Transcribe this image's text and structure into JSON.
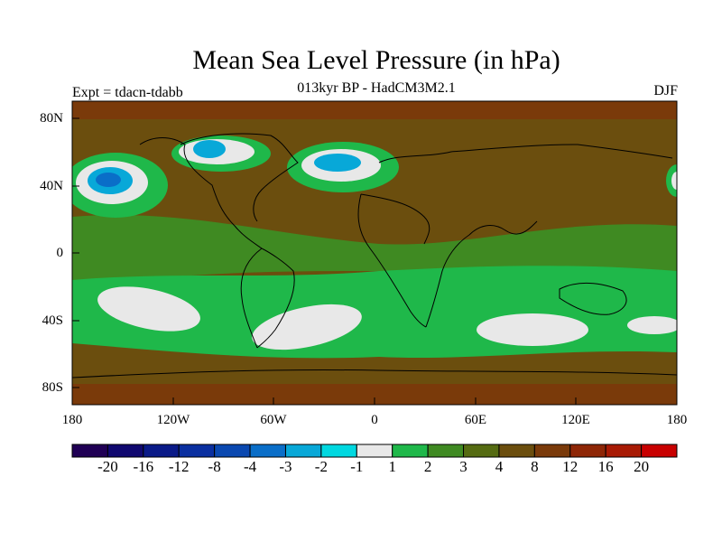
{
  "title": "Mean Sea Level Pressure (in hPa)",
  "subtitle": "013kyr BP - HadCM3M2.1",
  "experiment": "Expt = tdacn-tdabb",
  "season": "DJF",
  "y_ticks": [
    "80N",
    "40N",
    "0",
    "40S",
    "80S"
  ],
  "x_ticks": [
    "180",
    "120W",
    "60W",
    "0",
    "60E",
    "120E",
    "180"
  ],
  "colorbar": {
    "colors": [
      "#200055",
      "#100870",
      "#0a1a88",
      "#0a2fa0",
      "#0a48b0",
      "#0a6ec8",
      "#08a8d8",
      "#00d8e0",
      "#e8e8e8",
      "#1fb84a",
      "#3f8a22",
      "#556b12",
      "#6b4e0e",
      "#7a3a0a",
      "#8e2606",
      "#a81a04",
      "#c80000"
    ],
    "labels": [
      "-20",
      "-16",
      "-12",
      "-8",
      "-4",
      "-3",
      "-2",
      "-1",
      "1",
      "2",
      "3",
      "4",
      "8",
      "12",
      "16",
      "20"
    ]
  }
}
